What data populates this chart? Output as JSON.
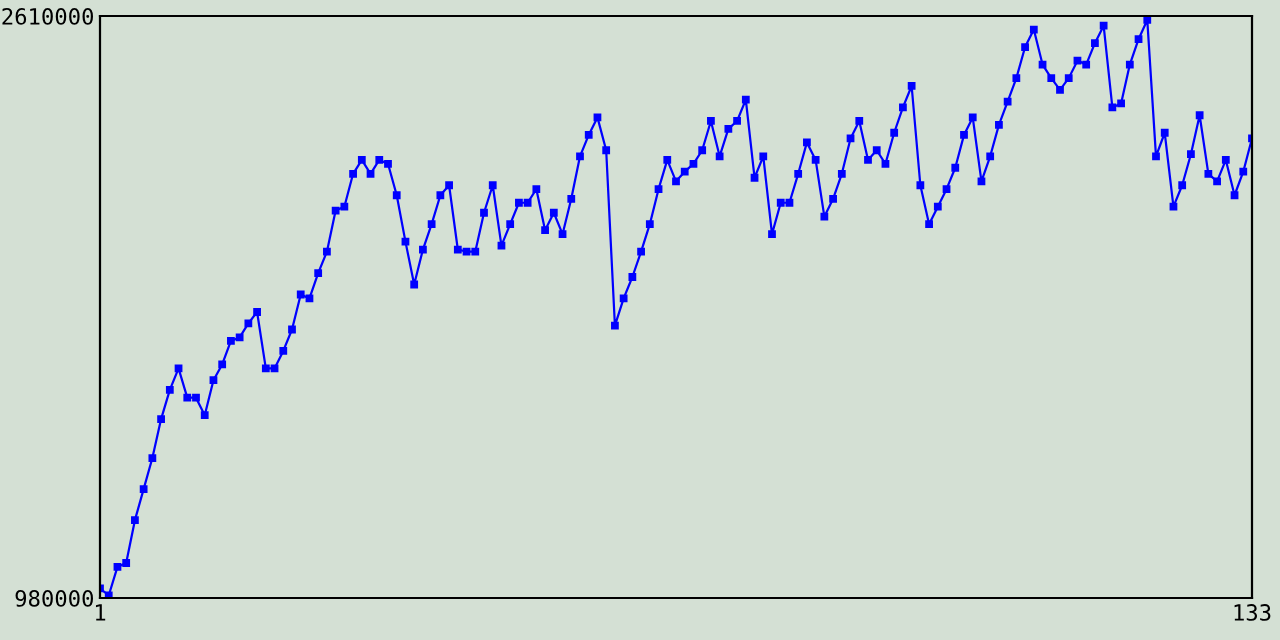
{
  "chart_data": {
    "type": "line",
    "marker": "square",
    "line_style": "solid",
    "color": "#0000ff",
    "x": [
      1,
      2,
      3,
      4,
      5,
      6,
      7,
      8,
      9,
      10,
      11,
      12,
      13,
      14,
      15,
      16,
      17,
      18,
      19,
      20,
      21,
      22,
      23,
      24,
      25,
      26,
      27,
      28,
      29,
      30,
      31,
      32,
      33,
      34,
      35,
      36,
      37,
      38,
      39,
      40,
      41,
      42,
      43,
      44,
      45,
      46,
      47,
      48,
      49,
      50,
      51,
      52,
      53,
      54,
      55,
      56,
      57,
      58,
      59,
      60,
      61,
      62,
      63,
      64,
      65,
      66,
      67,
      68,
      69,
      70,
      71,
      72,
      73,
      74,
      75,
      76,
      77,
      78,
      79,
      80,
      81,
      82,
      83,
      84,
      85,
      86,
      87,
      88,
      89,
      90,
      91,
      92,
      93,
      94,
      95,
      96,
      97,
      98,
      99,
      100,
      101,
      102,
      103,
      104,
      105,
      106,
      107,
      108,
      109,
      110,
      111,
      112,
      113,
      114,
      115,
      116,
      117,
      118,
      119,
      120,
      121,
      122,
      123,
      124,
      125,
      126,
      127,
      128,
      129,
      130,
      131,
      132,
      133
    ],
    "values": [
      1007000,
      987000,
      1067000,
      1078000,
      1198000,
      1285000,
      1372000,
      1481000,
      1563000,
      1623000,
      1541000,
      1541000,
      1492000,
      1590000,
      1634000,
      1700000,
      1710000,
      1749000,
      1781000,
      1623000,
      1623000,
      1672000,
      1732000,
      1830000,
      1819000,
      1890000,
      1950000,
      2065000,
      2076000,
      2168000,
      2207000,
      2168000,
      2207000,
      2196000,
      2108000,
      1978000,
      1858000,
      1956000,
      2027000,
      2108000,
      2136000,
      1956000,
      1950000,
      1950000,
      2059000,
      2136000,
      1967000,
      2027000,
      2087000,
      2087000,
      2125000,
      2010000,
      2059000,
      1999000,
      2098000,
      2217000,
      2277000,
      2326000,
      2234000,
      1743000,
      1819000,
      1879000,
      1950000,
      2027000,
      2125000,
      2207000,
      2147000,
      2174000,
      2196000,
      2234000,
      2316000,
      2217000,
      2294000,
      2316000,
      2376000,
      2157000,
      2217000,
      1999000,
      2087000,
      2087000,
      2168000,
      2256000,
      2207000,
      2048000,
      2098000,
      2168000,
      2267000,
      2316000,
      2207000,
      2234000,
      2196000,
      2283000,
      2354000,
      2414000,
      2136000,
      2027000,
      2076000,
      2125000,
      2185000,
      2277000,
      2326000,
      2147000,
      2217000,
      2305000,
      2370000,
      2436000,
      2523000,
      2572000,
      2474000,
      2436000,
      2403000,
      2436000,
      2485000,
      2474000,
      2534000,
      2583000,
      2354000,
      2365000,
      2474000,
      2545000,
      2599000,
      2217000,
      2283000,
      2076000,
      2136000,
      2223000,
      2332000,
      2168000,
      2147000,
      2207000,
      2108000,
      2174000,
      2267000
    ],
    "xlim": [
      1,
      133
    ],
    "ylim": [
      980000,
      2610000
    ],
    "xticks": [
      1,
      133
    ],
    "yticks": [
      980000,
      2610000
    ]
  }
}
